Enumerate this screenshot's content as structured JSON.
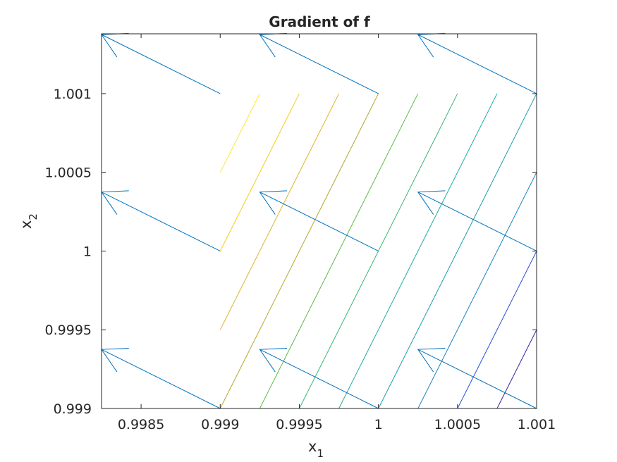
{
  "chart_data": {
    "type": "quiver_contour",
    "title": "Gradient of f",
    "xlabel": "x",
    "xlabel_sub": "1",
    "ylabel": "x",
    "ylabel_sub": "2",
    "xlim": [
      0.99825,
      1.001
    ],
    "ylim": [
      0.999,
      1.00138
    ],
    "x_ticks": [
      {
        "value": 0.9985,
        "label": "0.9985"
      },
      {
        "value": 0.999,
        "label": "0.999"
      },
      {
        "value": 0.9995,
        "label": "0.9995"
      },
      {
        "value": 1.0,
        "label": "1"
      },
      {
        "value": 1.0005,
        "label": "1.0005"
      },
      {
        "value": 1.001,
        "label": "1.001"
      }
    ],
    "y_ticks": [
      {
        "value": 0.999,
        "label": "0.999"
      },
      {
        "value": 0.9995,
        "label": "0.9995"
      },
      {
        "value": 1.0,
        "label": "1"
      },
      {
        "value": 1.0005,
        "label": "1.0005"
      },
      {
        "value": 1.001,
        "label": "1.001"
      }
    ],
    "arrow_color": "#0072bd",
    "arrows": [
      {
        "x": 0.999,
        "y": 0.999,
        "u": -0.00075,
        "v": 0.000375
      },
      {
        "x": 1.0,
        "y": 0.999,
        "u": -0.00075,
        "v": 0.000375
      },
      {
        "x": 1.001,
        "y": 0.999,
        "u": -0.00075,
        "v": 0.000375
      },
      {
        "x": 0.999,
        "y": 1.0,
        "u": -0.00075,
        "v": 0.000375
      },
      {
        "x": 1.0,
        "y": 1.0,
        "u": -0.00075,
        "v": 0.000375
      },
      {
        "x": 1.001,
        "y": 1.0,
        "u": -0.00075,
        "v": 0.000375
      },
      {
        "x": 0.999,
        "y": 1.001,
        "u": -0.00075,
        "v": 0.000375
      },
      {
        "x": 1.0,
        "y": 1.001,
        "u": -0.00075,
        "v": 0.000375
      },
      {
        "x": 1.001,
        "y": 1.001,
        "u": -0.00075,
        "v": 0.000375
      }
    ],
    "contours": [
      {
        "color": "#fde724",
        "points": [
          [
            0.999,
            1.0005
          ],
          [
            0.99925,
            1.001
          ]
        ]
      },
      {
        "color": "#f2cd1c",
        "points": [
          [
            0.999,
            1.0
          ],
          [
            0.9995,
            1.001
          ]
        ]
      },
      {
        "color": "#dbb52a",
        "points": [
          [
            0.999,
            0.9995
          ],
          [
            0.99975,
            1.001
          ]
        ]
      },
      {
        "color": "#b5a52c",
        "points": [
          [
            0.999,
            0.999
          ],
          [
            1.0,
            1.001
          ]
        ]
      },
      {
        "color": "#5cba48",
        "points": [
          [
            0.99925,
            0.999
          ],
          [
            1.00025,
            1.001
          ]
        ]
      },
      {
        "color": "#3bb578",
        "points": [
          [
            0.9995,
            0.999
          ],
          [
            1.0005,
            1.001
          ]
        ]
      },
      {
        "color": "#23ab98",
        "points": [
          [
            0.99975,
            0.999
          ],
          [
            1.00075,
            1.001
          ]
        ]
      },
      {
        "color": "#1e9bae",
        "points": [
          [
            1.0,
            0.999
          ],
          [
            1.001,
            1.001
          ]
        ]
      },
      {
        "color": "#1a84c2",
        "points": [
          [
            1.00025,
            0.999
          ],
          [
            1.001,
            1.0005
          ]
        ]
      },
      {
        "color": "#2b4fd0",
        "points": [
          [
            1.0005,
            0.999
          ],
          [
            1.001,
            1.0
          ]
        ]
      },
      {
        "color": "#3b1fa8",
        "points": [
          [
            1.00075,
            0.999
          ],
          [
            1.001,
            0.9995
          ]
        ]
      }
    ],
    "grid": false
  }
}
